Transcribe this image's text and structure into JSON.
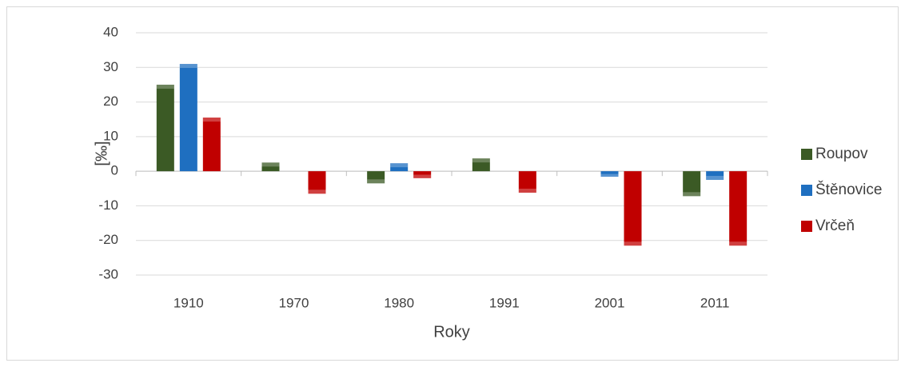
{
  "chart_data": {
    "type": "bar",
    "x_label": "Roky",
    "y_label": "[‰]",
    "categories": [
      "1910",
      "1970",
      "1980",
      "1991",
      "2001",
      "2011"
    ],
    "series": [
      {
        "name": "Roupov",
        "color": "#3b5a25",
        "values": [
          25,
          2.5,
          -3.5,
          3.7,
          0,
          -7.2
        ]
      },
      {
        "name": "Štěnovice",
        "color": "#1f6fc0",
        "values": [
          31,
          0,
          2.3,
          0,
          -1.6,
          -2.5
        ]
      },
      {
        "name": "Vrčeň",
        "color": "#c00000",
        "values": [
          15.5,
          -6.5,
          -2,
          -6.2,
          -21.5,
          -21.5
        ]
      }
    ],
    "ylim": [
      -30,
      40
    ],
    "yticks": [
      -30,
      -20,
      -10,
      0,
      10,
      20,
      30,
      40
    ],
    "grid": true,
    "legend": "right"
  }
}
